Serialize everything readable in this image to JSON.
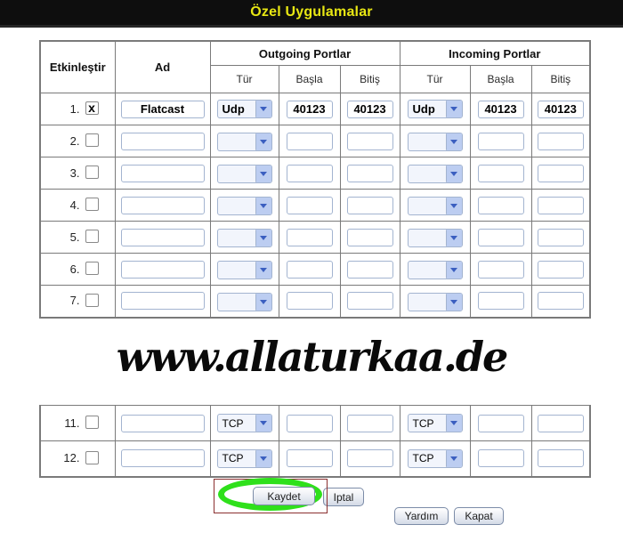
{
  "title_bar": {
    "title": "Özel Uygulamalar"
  },
  "colors": {
    "title_bar_bg": "#0e0e0e",
    "title_text": "#e8e713",
    "table_border": "#7a7a7a",
    "input_border": "#a3b4d0",
    "select_arrow_bg": "#bccdf1",
    "select_arrow": "#3b5fc0",
    "highlight_green": "#2fe01b",
    "annotation_red": "#8b3030"
  },
  "table": {
    "headers": {
      "enable": "Etkinleştir",
      "name": "Ad",
      "outgoing": "Outgoing Portlar",
      "incoming": "Incoming Portlar",
      "type": "Tür",
      "start": "Başla",
      "end": "Bitiş"
    },
    "rows": [
      {
        "num": "1.",
        "checked": true,
        "check_mark": "x",
        "name": "Flatcast",
        "out_type": "Udp",
        "out_start": "40123",
        "out_end": "40123",
        "in_type": "Udp",
        "in_start": "40123",
        "in_end": "40123",
        "bold": true
      },
      {
        "num": "2.",
        "checked": false,
        "check_mark": "",
        "name": "",
        "out_type": "",
        "out_start": "",
        "out_end": "",
        "in_type": "",
        "in_start": "",
        "in_end": "",
        "bold": false
      },
      {
        "num": "3.",
        "checked": false,
        "check_mark": "",
        "name": "",
        "out_type": "",
        "out_start": "",
        "out_end": "",
        "in_type": "",
        "in_start": "",
        "in_end": "",
        "bold": false
      },
      {
        "num": "4.",
        "checked": false,
        "check_mark": "",
        "name": "",
        "out_type": "",
        "out_start": "",
        "out_end": "",
        "in_type": "",
        "in_start": "",
        "in_end": "",
        "bold": false
      },
      {
        "num": "5.",
        "checked": false,
        "check_mark": "",
        "name": "",
        "out_type": "",
        "out_start": "",
        "out_end": "",
        "in_type": "",
        "in_start": "",
        "in_end": "",
        "bold": false
      },
      {
        "num": "6.",
        "checked": false,
        "check_mark": "",
        "name": "",
        "out_type": "",
        "out_start": "",
        "out_end": "",
        "in_type": "",
        "in_start": "",
        "in_end": "",
        "bold": false
      },
      {
        "num": "7.",
        "checked": false,
        "check_mark": "",
        "name": "",
        "out_type": "",
        "out_start": "",
        "out_end": "",
        "in_type": "",
        "in_start": "",
        "in_end": "",
        "bold": false
      }
    ]
  },
  "watermark": {
    "text": "www.allaturkaa.de"
  },
  "bottom_table": {
    "rows": [
      {
        "num": "11.",
        "checked": false,
        "check_mark": "",
        "name": "",
        "out_type": "TCP",
        "out_start": "",
        "out_end": "",
        "in_type": "TCP",
        "in_start": "",
        "in_end": "",
        "bold": false
      },
      {
        "num": "12.",
        "checked": false,
        "check_mark": "",
        "name": "",
        "out_type": "TCP",
        "out_start": "",
        "out_end": "",
        "in_type": "TCP",
        "in_start": "",
        "in_end": "",
        "bold": false
      }
    ]
  },
  "buttons": {
    "save": "Kaydet",
    "cancel": "Iptal",
    "help": "Yardım",
    "close": "Kapat"
  }
}
